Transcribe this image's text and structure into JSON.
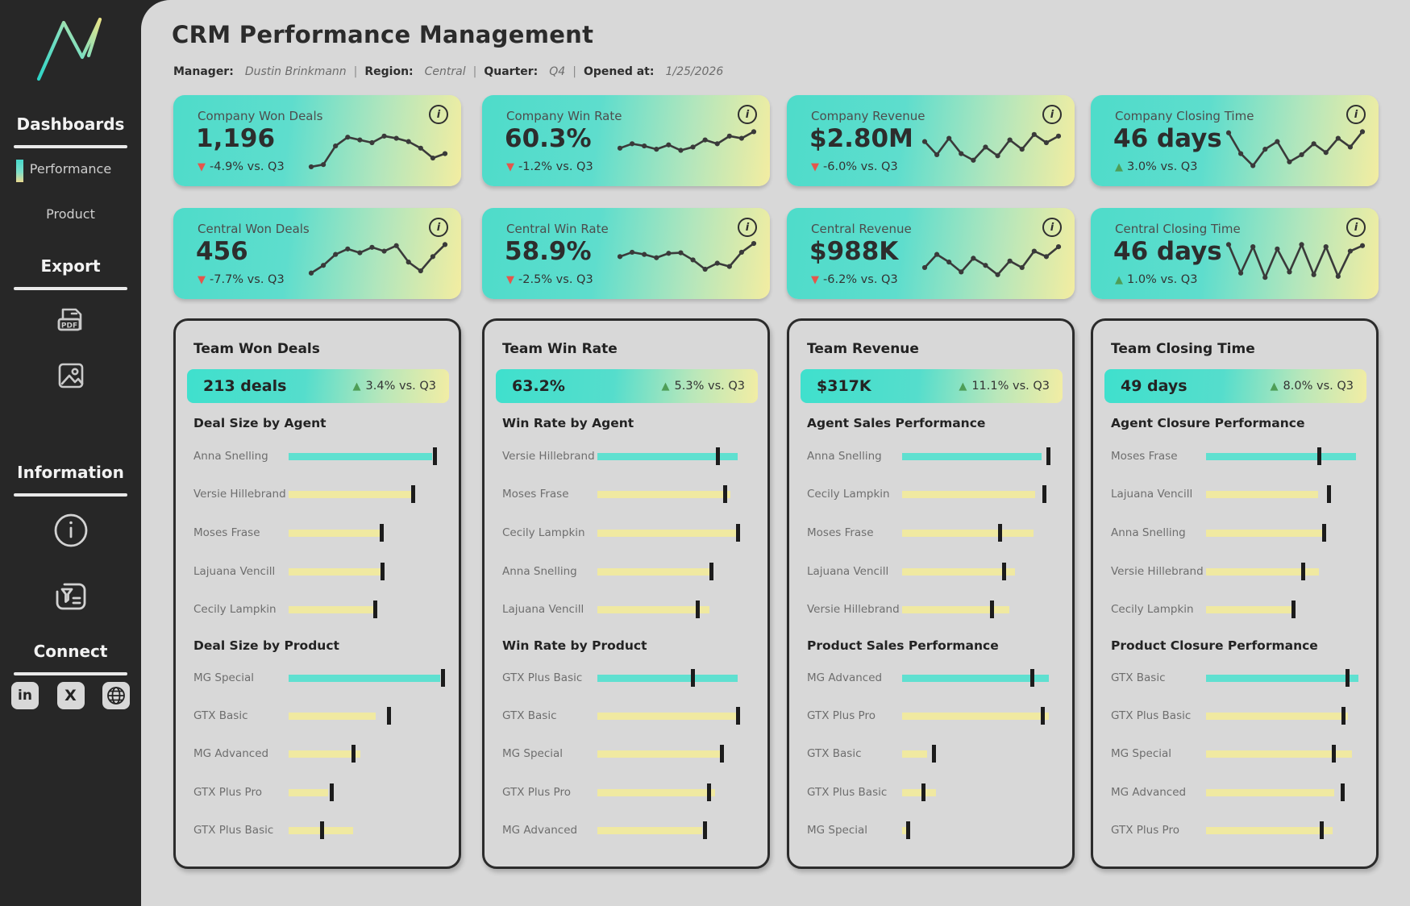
{
  "colors": {
    "teal": "#5fe0d0",
    "yellow": "#f0e9a1",
    "gradient_start": "#4edcca",
    "gradient_end": "#f3eda1",
    "up_green": "#4e9e57",
    "down_red": "#e4564c",
    "ink": "#2d2d2d",
    "sidebar_bg": "#272727",
    "main_bg": "#d8d8d8"
  },
  "sidebar": {
    "logo": "gradient-zigzag-logo",
    "dashboards_heading": "Dashboards",
    "items": [
      {
        "label": "Performance",
        "active": true
      },
      {
        "label": "Product",
        "active": false
      }
    ],
    "export_heading": "Export",
    "export_icons": [
      {
        "name": "pdf-export-icon"
      },
      {
        "name": "image-export-icon"
      }
    ],
    "information_heading": "Information",
    "information_icons": [
      {
        "name": "info-icon"
      },
      {
        "name": "feedback-icon"
      }
    ],
    "connect_heading": "Connect",
    "connect_icons": [
      {
        "name": "linkedin-icon",
        "glyph": "in"
      },
      {
        "name": "x-icon",
        "glyph": "X"
      },
      {
        "name": "globe-icon",
        "glyph": ""
      }
    ]
  },
  "header": {
    "title": "CRM Performance Management",
    "meta": [
      {
        "label": "Manager:",
        "value": "Dustin Brinkmann"
      },
      {
        "label": "Region:",
        "value": "Central"
      },
      {
        "label": "Quarter:",
        "value": "Q4"
      },
      {
        "label": "Opened at:",
        "value": "1/25/2026"
      }
    ]
  },
  "kpi_cards": [
    {
      "label": "Company Won Deals",
      "value": "1,196",
      "direction": "down",
      "delta": "-4.9% vs. Q3",
      "col": 0,
      "row": 0,
      "spark": [
        6,
        10,
        44,
        60,
        55,
        50,
        62,
        58,
        52,
        40,
        22,
        30
      ]
    },
    {
      "label": "Company Win Rate",
      "value": "60.3%",
      "direction": "down",
      "delta": "-1.2% vs. Q3",
      "col": 1,
      "row": 0,
      "spark": [
        40,
        48,
        44,
        38,
        46,
        36,
        42,
        55,
        48,
        62,
        58,
        70
      ]
    },
    {
      "label": "Company Revenue",
      "value": "$2.80M",
      "direction": "down",
      "delta": "-6.0% vs. Q3",
      "col": 2,
      "row": 0,
      "spark": [
        52,
        28,
        58,
        30,
        18,
        42,
        26,
        55,
        38,
        65,
        50,
        62
      ]
    },
    {
      "label": "Company Closing Time",
      "value": "46 days",
      "direction": "up",
      "delta": "3.0% vs. Q3",
      "col": 3,
      "row": 0,
      "spark": [
        68,
        30,
        8,
        38,
        52,
        15,
        28,
        48,
        32,
        58,
        42,
        70
      ]
    },
    {
      "label": "Central Won Deals",
      "value": "456",
      "direction": "down",
      "delta": "-7.7% vs. Q3",
      "col": 0,
      "row": 1,
      "spark": [
        18,
        32,
        52,
        62,
        55,
        65,
        58,
        68,
        38,
        22,
        48,
        70
      ]
    },
    {
      "label": "Central Win Rate",
      "value": "58.9%",
      "direction": "down",
      "delta": "-2.5% vs. Q3",
      "col": 1,
      "row": 1,
      "spark": [
        48,
        56,
        52,
        46,
        54,
        55,
        42,
        25,
        36,
        30,
        56,
        72
      ]
    },
    {
      "label": "Central Revenue",
      "value": "$988K",
      "direction": "down",
      "delta": "-6.2% vs. Q3",
      "col": 2,
      "row": 1,
      "spark": [
        28,
        52,
        38,
        20,
        45,
        32,
        15,
        40,
        28,
        58,
        48,
        66
      ]
    },
    {
      "label": "Central Closing Time",
      "value": "46 days",
      "direction": "up",
      "delta": "1.0% vs. Q3",
      "col": 3,
      "row": 1,
      "spark": [
        70,
        18,
        66,
        10,
        62,
        20,
        70,
        15,
        66,
        12,
        58,
        68
      ]
    }
  ],
  "team_cards": [
    {
      "title": "Team Won Deals",
      "col": 0,
      "banner": {
        "value": "213 deals",
        "direction": "up",
        "delta": "3.4% vs. Q3"
      },
      "sections": [
        {
          "title": "Deal Size by Agent",
          "rows": [
            {
              "label": "Anna Snelling",
              "bar": 178,
              "tick": 181,
              "teal": true
            },
            {
              "label": "Versie Hillebrand",
              "bar": 152,
              "tick": 154,
              "teal": false
            },
            {
              "label": "Moses Frase",
              "bar": 113,
              "tick": 115,
              "teal": false
            },
            {
              "label": "Lajuana Vencill",
              "bar": 118,
              "tick": 116,
              "teal": false
            },
            {
              "label": "Cecily Lampkin",
              "bar": 105,
              "tick": 107,
              "teal": false
            }
          ]
        },
        {
          "title": "Deal Size by Product",
          "rows": [
            {
              "label": "MG Special",
              "bar": 188,
              "tick": 191,
              "teal": true
            },
            {
              "label": "GTX Basic",
              "bar": 108,
              "tick": 124,
              "teal": false
            },
            {
              "label": "MG Advanced",
              "bar": 89,
              "tick": 80,
              "teal": false
            },
            {
              "label": "GTX Plus Pro",
              "bar": 49,
              "tick": 53,
              "teal": false
            },
            {
              "label": "GTX Plus Basic",
              "bar": 80,
              "tick": 41,
              "teal": false
            }
          ]
        }
      ]
    },
    {
      "title": "Team Win Rate",
      "col": 1,
      "banner": {
        "value": "63.2%",
        "direction": "up",
        "delta": "5.3% vs. Q3"
      },
      "sections": [
        {
          "title": "Win Rate by Agent",
          "rows": [
            {
              "label": "Versie Hillebrand",
              "bar": 174,
              "tick": 149,
              "teal": true
            },
            {
              "label": "Moses Frase",
              "bar": 165,
              "tick": 158,
              "teal": false
            },
            {
              "label": "Cecily Lampkin",
              "bar": 172,
              "tick": 174,
              "teal": false
            },
            {
              "label": "Anna Snelling",
              "bar": 139,
              "tick": 141,
              "teal": false
            },
            {
              "label": "Lajuana Vencill",
              "bar": 139,
              "tick": 124,
              "teal": false
            }
          ]
        },
        {
          "title": "Win Rate by Product",
          "rows": [
            {
              "label": "GTX Plus Basic",
              "bar": 174,
              "tick": 118,
              "teal": true
            },
            {
              "label": "GTX Basic",
              "bar": 172,
              "tick": 174,
              "teal": false
            },
            {
              "label": "MG Special",
              "bar": 152,
              "tick": 154,
              "teal": false
            },
            {
              "label": "GTX Plus Pro",
              "bar": 146,
              "tick": 138,
              "teal": false
            },
            {
              "label": "MG Advanced",
              "bar": 130,
              "tick": 133,
              "teal": false
            }
          ]
        }
      ]
    },
    {
      "title": "Team Revenue",
      "col": 2,
      "banner": {
        "value": "$317K",
        "direction": "up",
        "delta": "11.1% vs. Q3"
      },
      "sections": [
        {
          "title": "Agent Sales Performance",
          "rows": [
            {
              "label": "Anna Snelling",
              "bar": 173,
              "tick": 181,
              "teal": true
            },
            {
              "label": "Cecily Lampkin",
              "bar": 165,
              "tick": 176,
              "teal": false
            },
            {
              "label": "Moses Frase",
              "bar": 163,
              "tick": 121,
              "teal": false
            },
            {
              "label": "Lajuana Vencill",
              "bar": 140,
              "tick": 126,
              "teal": false
            },
            {
              "label": "Versie Hillebrand",
              "bar": 133,
              "tick": 111,
              "teal": false
            }
          ]
        },
        {
          "title": "Product Sales Performance",
          "rows": [
            {
              "label": "MG Advanced",
              "bar": 182,
              "tick": 161,
              "teal": true
            },
            {
              "label": "GTX Plus Pro",
              "bar": 182,
              "tick": 174,
              "teal": false
            },
            {
              "label": "GTX Basic",
              "bar": 31,
              "tick": 39,
              "teal": false
            },
            {
              "label": "GTX Plus Basic",
              "bar": 42,
              "tick": 26,
              "teal": false
            },
            {
              "label": "MG Special",
              "bar": 5,
              "tick": 7,
              "teal": false
            }
          ]
        }
      ]
    },
    {
      "title": "Team  Closing Time",
      "col": 3,
      "banner": {
        "value": "49 days",
        "direction": "up",
        "delta": "8.0% vs. Q3"
      },
      "sections": [
        {
          "title": "Agent Closure Performance",
          "rows": [
            {
              "label": "Moses Frase",
              "bar": 186,
              "tick": 140,
              "teal": true
            },
            {
              "label": "Lajuana Vencill",
              "bar": 139,
              "tick": 152,
              "teal": false
            },
            {
              "label": "Anna Snelling",
              "bar": 144,
              "tick": 146,
              "teal": false
            },
            {
              "label": "Versie Hillebrand",
              "bar": 140,
              "tick": 120,
              "teal": false
            },
            {
              "label": "Cecily Lampkin",
              "bar": 106,
              "tick": 108,
              "teal": false
            }
          ]
        },
        {
          "title": "Product Closure Performance",
          "rows": [
            {
              "label": "GTX Basic",
              "bar": 189,
              "tick": 175,
              "teal": true
            },
            {
              "label": "GTX Plus Basic",
              "bar": 176,
              "tick": 170,
              "teal": false
            },
            {
              "label": "MG Special",
              "bar": 181,
              "tick": 158,
              "teal": false
            },
            {
              "label": "MG Advanced",
              "bar": 159,
              "tick": 169,
              "teal": false
            },
            {
              "label": "GTX Plus Pro",
              "bar": 157,
              "tick": 143,
              "teal": false
            }
          ]
        }
      ]
    }
  ]
}
